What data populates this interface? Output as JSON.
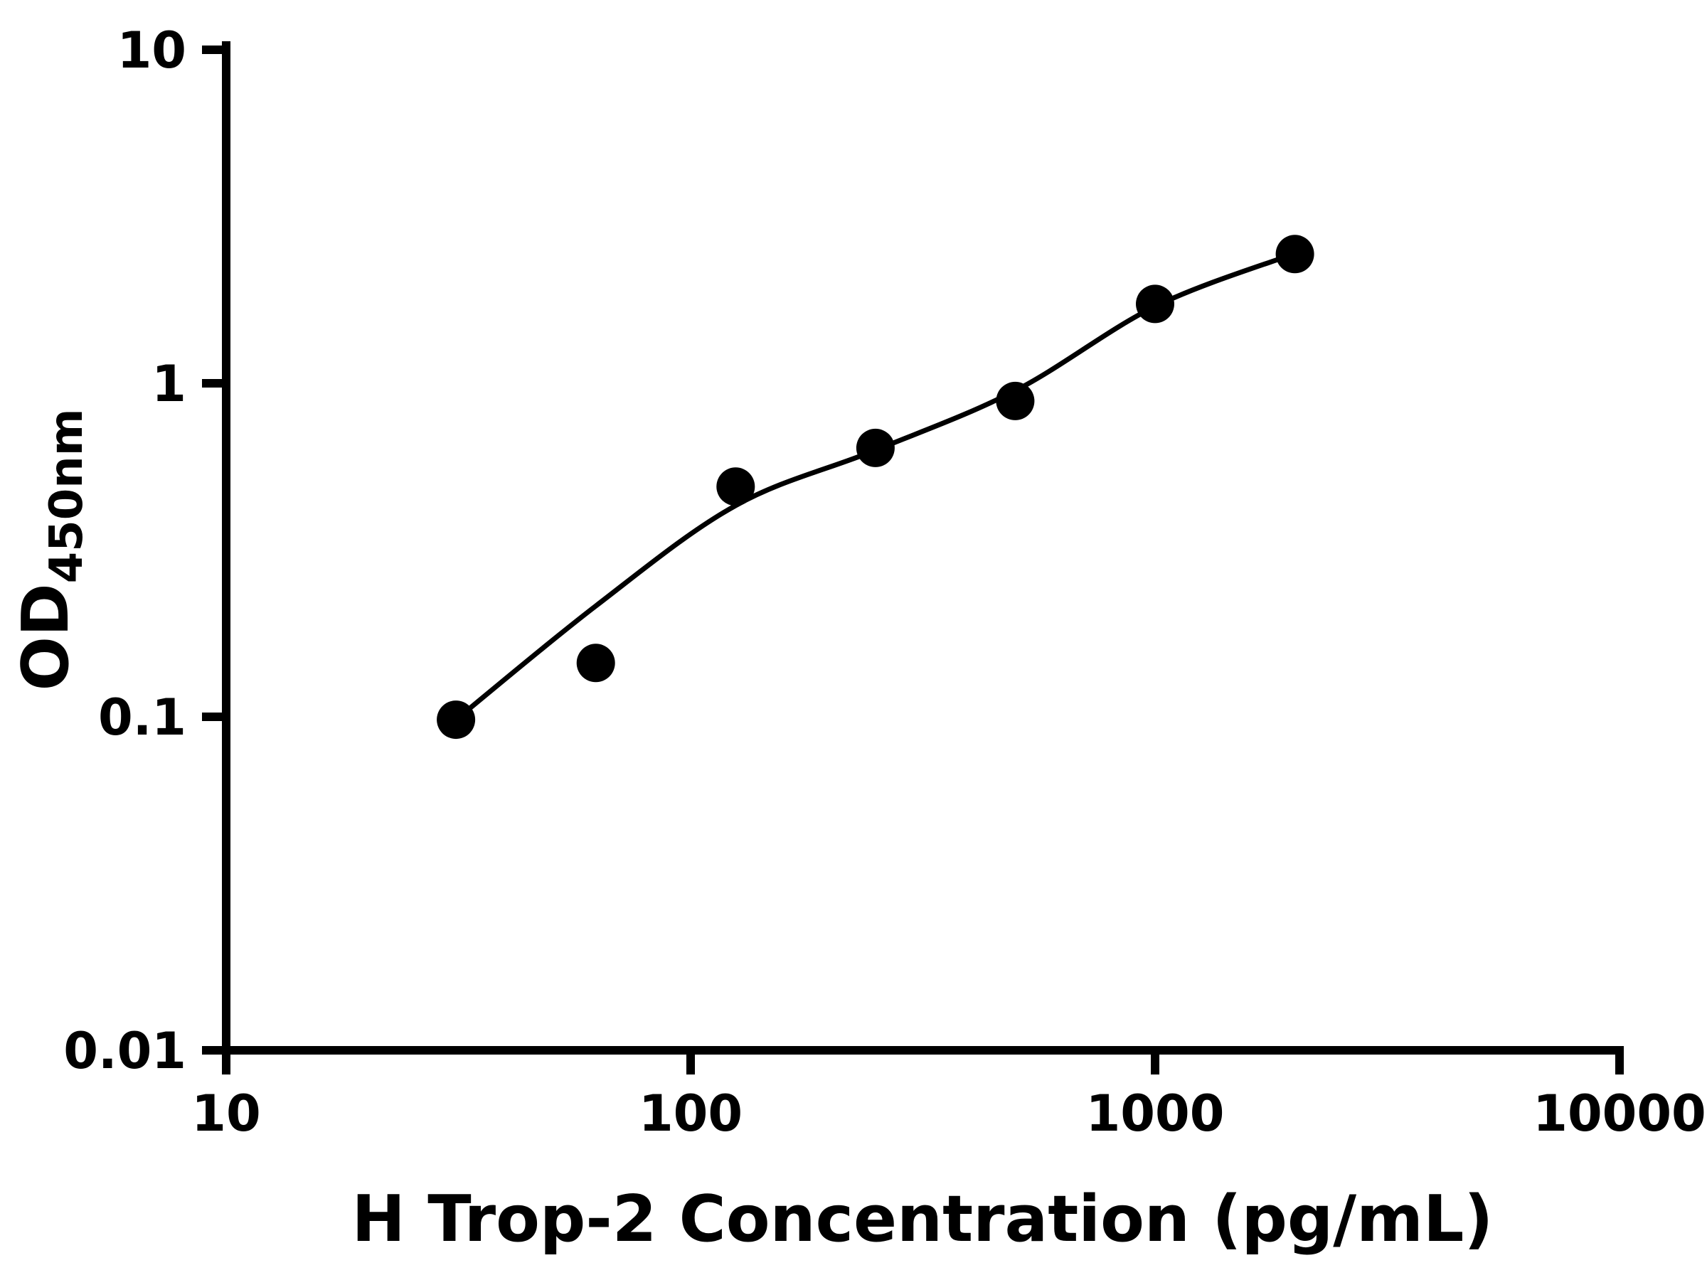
{
  "page": {
    "background_color": "#ffffff",
    "foreground_color": "#000000"
  },
  "chart_data": {
    "type": "scatter",
    "title": "",
    "xlabel": "H Trop-2 Concentration (pg/mL)",
    "ylabel": {
      "base": "OD",
      "subscript": "450nm"
    },
    "x_scale": "log",
    "y_scale": "log",
    "xlim": [
      10,
      10000
    ],
    "ylim": [
      0.01,
      10
    ],
    "x_ticks": [
      10,
      100,
      1000,
      10000
    ],
    "x_tick_labels": [
      "10",
      "100",
      "1000",
      "10000"
    ],
    "y_ticks": [
      0.01,
      0.1,
      1,
      10
    ],
    "y_tick_labels": [
      "0.01",
      "0.1",
      "1",
      "10"
    ],
    "grid": false,
    "legend": null,
    "series": [
      {
        "name": "standard-points",
        "type": "scatter",
        "marker": "circle",
        "color": "#000000",
        "points": [
          {
            "x": 31.25,
            "y": 0.098
          },
          {
            "x": 62.5,
            "y": 0.145
          },
          {
            "x": 125,
            "y": 0.49
          },
          {
            "x": 250,
            "y": 0.64
          },
          {
            "x": 500,
            "y": 0.885
          },
          {
            "x": 1000,
            "y": 1.73
          },
          {
            "x": 2000,
            "y": 2.44
          }
        ]
      },
      {
        "name": "fit-curve",
        "type": "line",
        "color": "#000000",
        "points": [
          {
            "x": 31.25,
            "y": 0.098
          },
          {
            "x": 62.5,
            "y": 0.215
          },
          {
            "x": 125,
            "y": 0.43
          },
          {
            "x": 250,
            "y": 0.63
          },
          {
            "x": 500,
            "y": 0.95
          },
          {
            "x": 1000,
            "y": 1.7
          },
          {
            "x": 2000,
            "y": 2.45
          }
        ]
      }
    ]
  },
  "style": {
    "axis_color": "#000000",
    "tick_color": "#000000",
    "marker_color": "#000000",
    "curve_color": "#000000"
  }
}
